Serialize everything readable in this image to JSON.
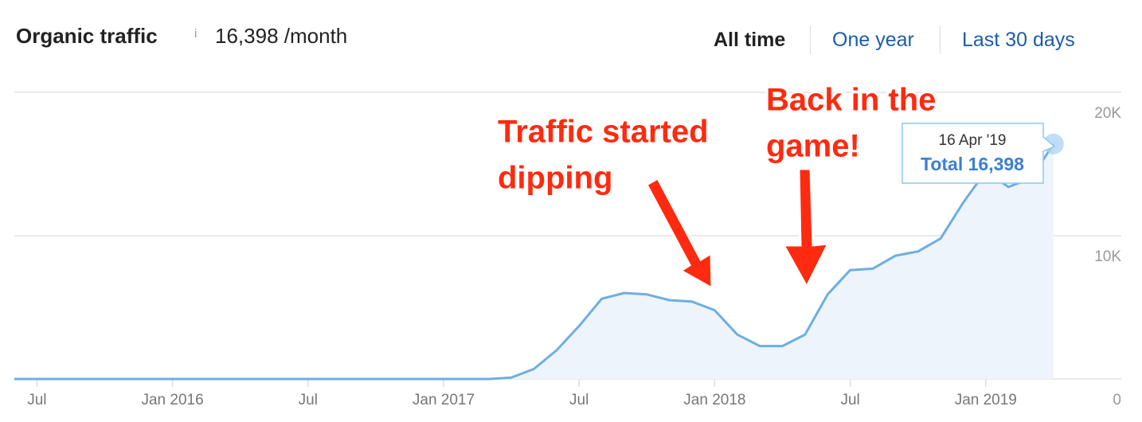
{
  "header": {
    "title": "Organic traffic",
    "info": "i",
    "traffic": "16,398",
    "unit": "/month",
    "ranges": [
      "All time",
      "One year",
      "Last 30 days"
    ]
  },
  "chart_data": {
    "type": "line",
    "color": "#6eaee2",
    "fill": "#eef4fc",
    "grid": true,
    "x": [
      "2015-06",
      "2015-07",
      "2015-08",
      "2015-09",
      "2015-10",
      "2015-11",
      "2015-12",
      "2016-01",
      "2016-02",
      "2016-03",
      "2016-04",
      "2016-05",
      "2016-06",
      "2016-07",
      "2016-08",
      "2016-09",
      "2016-10",
      "2016-11",
      "2016-12",
      "2017-01",
      "2017-02",
      "2017-03",
      "2017-04",
      "2017-05",
      "2017-06",
      "2017-07",
      "2017-08",
      "2017-09",
      "2017-10",
      "2017-11",
      "2017-12",
      "2018-01",
      "2018-02",
      "2018-03",
      "2018-04",
      "2018-05",
      "2018-06",
      "2018-07",
      "2018-08",
      "2018-09",
      "2018-10",
      "2018-11",
      "2018-12",
      "2019-01",
      "2019-02",
      "2019-03",
      "2019-04"
    ],
    "values": [
      0,
      0,
      0,
      0,
      0,
      0,
      0,
      0,
      0,
      0,
      0,
      0,
      0,
      0,
      0,
      0,
      0,
      0,
      0,
      0,
      0,
      0,
      100,
      700,
      2000,
      3700,
      5600,
      6000,
      5900,
      5500,
      5400,
      4800,
      3100,
      2300,
      2300,
      3100,
      5900,
      7600,
      7700,
      8600,
      8900,
      9800,
      12300,
      14500,
      13400,
      14000,
      16398
    ],
    "xlim": [
      "2015-06",
      "2019-07"
    ],
    "xticks": [
      {
        "value": "2015-07",
        "label": "Jul"
      },
      {
        "value": "2016-01",
        "label": "Jan 2016"
      },
      {
        "value": "2016-07",
        "label": "Jul"
      },
      {
        "value": "2017-01",
        "label": "Jan 2017"
      },
      {
        "value": "2017-07",
        "label": "Jul"
      },
      {
        "value": "2018-01",
        "label": "Jan 2018"
      },
      {
        "value": "2018-07",
        "label": "Jul"
      },
      {
        "value": "2019-01",
        "label": "Jan 2019"
      }
    ],
    "ylim": [
      0,
      20000
    ],
    "yticks": [
      0,
      {
        "value": 10000,
        "label": "10K"
      },
      {
        "value": 20000,
        "label": "20K"
      }
    ],
    "annotations": [
      {
        "lines": [
          "Traffic started",
          "dipping"
        ]
      },
      {
        "lines": [
          "Back in the",
          "game!"
        ]
      }
    ],
    "tooltip": {
      "date": "16 Apr '19",
      "label": "Total",
      "value": "16,398"
    }
  }
}
